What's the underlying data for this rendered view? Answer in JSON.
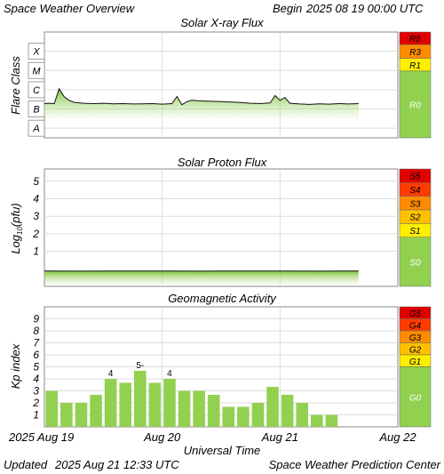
{
  "header": {
    "title": "Space Weather Overview",
    "begin_label": "Begin",
    "begin_value": "2025 08 19 00:00 UTC"
  },
  "footer": {
    "updated_label": "Updated",
    "updated_value": "2025 Aug 21 12:33 UTC",
    "source": "Space Weather Prediction Center"
  },
  "chart_data": [
    {
      "type": "area",
      "title": "Solar X-ray Flux",
      "ylabel": "Flare Class",
      "y_scale": "log",
      "ylim": [
        -8.5,
        -3.0
      ],
      "y_ticks": [
        {
          "label": "A",
          "value": -8
        },
        {
          "label": "B",
          "value": -7
        },
        {
          "label": "C",
          "value": -6
        },
        {
          "label": "M",
          "value": -5
        },
        {
          "label": "X",
          "value": -4
        }
      ],
      "x_days": [
        0,
        1,
        2,
        3
      ],
      "series": [
        {
          "x_hours": [
            0,
            1,
            2,
            3,
            4,
            5,
            6,
            7,
            8,
            10,
            12,
            14,
            16,
            18,
            20,
            22,
            24,
            26,
            27,
            28,
            29,
            30,
            32,
            34,
            36,
            38,
            40,
            42,
            44,
            46,
            47,
            48,
            49,
            50,
            52,
            54,
            56,
            58,
            60,
            62,
            64
          ],
          "log_flux": [
            -6.72,
            -6.7,
            -6.72,
            -5.95,
            -6.35,
            -6.55,
            -6.65,
            -6.68,
            -6.7,
            -6.72,
            -6.7,
            -6.73,
            -6.72,
            -6.74,
            -6.73,
            -6.72,
            -6.75,
            -6.72,
            -6.35,
            -6.78,
            -6.62,
            -6.55,
            -6.58,
            -6.6,
            -6.62,
            -6.64,
            -6.66,
            -6.7,
            -6.72,
            -6.68,
            -6.3,
            -6.55,
            -6.4,
            -6.7,
            -6.74,
            -6.76,
            -6.73,
            -6.75,
            -6.72,
            -6.74,
            -6.72
          ]
        }
      ],
      "scale": [
        {
          "label": "R5",
          "color": "#e00000"
        },
        {
          "label": "R3",
          "color": "#ff8c00"
        },
        {
          "label": "R1",
          "color": "#ffee00"
        },
        {
          "label": "R0",
          "color": "#92d050"
        }
      ]
    },
    {
      "type": "area",
      "title": "Solar Proton Flux",
      "ylabel": "Log10(pfu)",
      "ylim": [
        -1.0,
        5.7
      ],
      "y_ticks": [
        {
          "label": "1",
          "value": 1
        },
        {
          "label": "2",
          "value": 2
        },
        {
          "label": "3",
          "value": 3
        },
        {
          "label": "4",
          "value": 4
        },
        {
          "label": "5",
          "value": 5
        }
      ],
      "x_days": [
        0,
        1,
        2,
        3
      ],
      "series": [
        {
          "x_hours": [
            0,
            8,
            16,
            24,
            32,
            40,
            48,
            56,
            64
          ],
          "log_pfu": [
            -0.12,
            -0.13,
            -0.12,
            -0.12,
            -0.13,
            -0.12,
            -0.12,
            -0.13,
            -0.12
          ]
        }
      ],
      "scale": [
        {
          "label": "S5",
          "color": "#e00000"
        },
        {
          "label": "S4",
          "color": "#ff3c00"
        },
        {
          "label": "S3",
          "color": "#ff8c00"
        },
        {
          "label": "S2",
          "color": "#ffc000"
        },
        {
          "label": "S1",
          "color": "#ffee00"
        },
        {
          "label": "S0",
          "color": "#92d050"
        }
      ]
    },
    {
      "type": "bar",
      "title": "Geomagnetic Activity",
      "ylabel": "Kp index",
      "xlabel": "Universal Time",
      "ylim": [
        0,
        10
      ],
      "y_ticks": [
        "1",
        "2",
        "3",
        "4",
        "5",
        "6",
        "7",
        "8",
        "9"
      ],
      "x_tick_labels": [
        "2025 Aug 19",
        "Aug 20",
        "Aug 21",
        "Aug 22"
      ],
      "bar_width_hours": 3,
      "values": [
        3.0,
        2.0,
        2.0,
        2.67,
        4.0,
        3.67,
        4.67,
        3.67,
        4.0,
        3.0,
        3.0,
        2.67,
        1.67,
        1.67,
        2.0,
        3.33,
        2.67,
        2.0,
        1.0,
        1.0
      ],
      "bar_labels": [
        {
          "index": 4,
          "label": "4"
        },
        {
          "index": 6,
          "label": "5-"
        },
        {
          "index": 8,
          "label": "4"
        }
      ],
      "scale": [
        {
          "label": "G5",
          "color": "#e00000"
        },
        {
          "label": "G4",
          "color": "#ff3c00"
        },
        {
          "label": "G3",
          "color": "#ff8c00"
        },
        {
          "label": "G2",
          "color": "#ffc000"
        },
        {
          "label": "G1",
          "color": "#ffee00"
        },
        {
          "label": "G0",
          "color": "#92d050"
        }
      ]
    }
  ],
  "colors": {
    "fill": "#92d050",
    "grid": "#dddddd",
    "frame": "#888888"
  }
}
